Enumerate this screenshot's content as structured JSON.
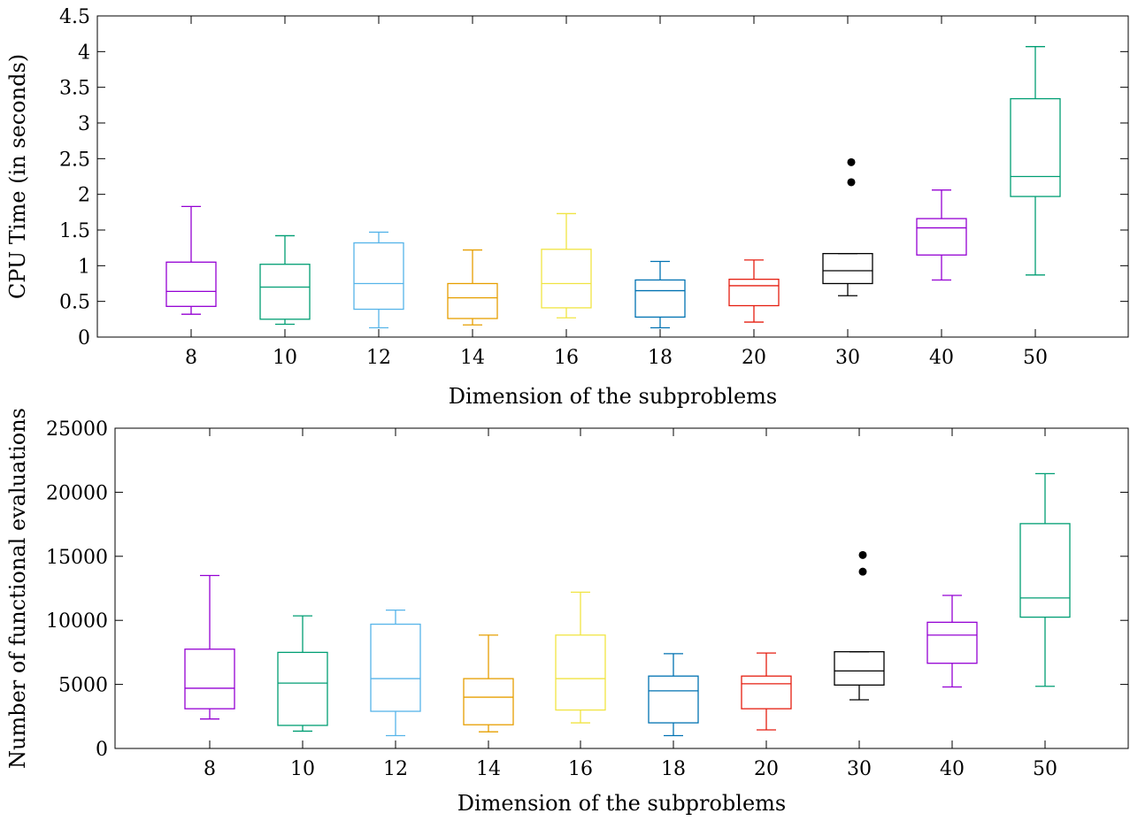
{
  "chart_data": [
    {
      "type": "box",
      "xlabel": "Dimension of the subproblems",
      "ylabel": "CPU Time (in seconds)",
      "ylim": [
        0,
        4.5
      ],
      "yticks": [
        "0",
        "0.5",
        "1",
        "1.5",
        "2",
        "2.5",
        "3",
        "3.5",
        "4",
        "4.5"
      ],
      "ytick_values": [
        0,
        0.5,
        1,
        1.5,
        2,
        2.5,
        3,
        3.5,
        4,
        4.5
      ],
      "grid": false,
      "categories": [
        "8",
        "10",
        "12",
        "14",
        "16",
        "18",
        "20",
        "30",
        "40",
        "50"
      ],
      "boxes": [
        {
          "min": 0.32,
          "q1": 0.43,
          "median": 0.64,
          "q3": 1.05,
          "max": 1.83,
          "outliers": [],
          "color": "#9400d3"
        },
        {
          "min": 0.18,
          "q1": 0.25,
          "median": 0.7,
          "q3": 1.02,
          "max": 1.42,
          "outliers": [],
          "color": "#009e73"
        },
        {
          "min": 0.13,
          "q1": 0.39,
          "median": 0.75,
          "q3": 1.32,
          "max": 1.47,
          "outliers": [],
          "color": "#56b4e9"
        },
        {
          "min": 0.17,
          "q1": 0.26,
          "median": 0.55,
          "q3": 0.75,
          "max": 1.22,
          "outliers": [],
          "color": "#e69f00"
        },
        {
          "min": 0.27,
          "q1": 0.41,
          "median": 0.75,
          "q3": 1.23,
          "max": 1.73,
          "outliers": [],
          "color": "#f0e442"
        },
        {
          "min": 0.13,
          "q1": 0.28,
          "median": 0.65,
          "q3": 0.8,
          "max": 1.06,
          "outliers": [],
          "color": "#0072b2"
        },
        {
          "min": 0.21,
          "q1": 0.44,
          "median": 0.72,
          "q3": 0.81,
          "max": 1.08,
          "outliers": [],
          "color": "#e51e10"
        },
        {
          "min": 0.58,
          "q1": 0.75,
          "median": 0.93,
          "q3": 1.17,
          "max": 1.17,
          "outliers": [
            2.17,
            2.45
          ],
          "color": "#000000"
        },
        {
          "min": 0.8,
          "q1": 1.15,
          "median": 1.53,
          "q3": 1.66,
          "max": 2.06,
          "outliers": [],
          "color": "#9400d3"
        },
        {
          "min": 0.87,
          "q1": 1.97,
          "median": 2.25,
          "q3": 3.34,
          "max": 4.07,
          "outliers": [],
          "color": "#009e73"
        }
      ]
    },
    {
      "type": "box",
      "xlabel": "Dimension of the subproblems",
      "ylabel": "Number of functional evaluations",
      "ylim": [
        0,
        25000
      ],
      "yticks": [
        "0",
        "5000",
        "10000",
        "15000",
        "20000",
        "25000"
      ],
      "ytick_values": [
        0,
        5000,
        10000,
        15000,
        20000,
        25000
      ],
      "grid": false,
      "categories": [
        "8",
        "10",
        "12",
        "14",
        "16",
        "18",
        "20",
        "30",
        "40",
        "50"
      ],
      "boxes": [
        {
          "min": 2300,
          "q1": 3100,
          "median": 4700,
          "q3": 7750,
          "max": 13500,
          "outliers": [],
          "color": "#9400d3"
        },
        {
          "min": 1350,
          "q1": 1800,
          "median": 5100,
          "q3": 7500,
          "max": 10350,
          "outliers": [],
          "color": "#009e73"
        },
        {
          "min": 1000,
          "q1": 2900,
          "median": 5450,
          "q3": 9700,
          "max": 10800,
          "outliers": [],
          "color": "#56b4e9"
        },
        {
          "min": 1300,
          "q1": 1850,
          "median": 4000,
          "q3": 5450,
          "max": 8850,
          "outliers": [],
          "color": "#e69f00"
        },
        {
          "min": 2000,
          "q1": 3000,
          "median": 5450,
          "q3": 8850,
          "max": 12200,
          "outliers": [],
          "color": "#f0e442"
        },
        {
          "min": 1000,
          "q1": 2000,
          "median": 4500,
          "q3": 5650,
          "max": 7400,
          "outliers": [],
          "color": "#0072b2"
        },
        {
          "min": 1450,
          "q1": 3100,
          "median": 5050,
          "q3": 5650,
          "max": 7450,
          "outliers": [],
          "color": "#e51e10"
        },
        {
          "min": 3800,
          "q1": 4950,
          "median": 6050,
          "q3": 7550,
          "max": 7550,
          "outliers": [
            13800,
            15100
          ],
          "color": "#000000"
        },
        {
          "min": 4800,
          "q1": 6650,
          "median": 8850,
          "q3": 9850,
          "max": 11950,
          "outliers": [],
          "color": "#9400d3"
        },
        {
          "min": 4850,
          "q1": 10250,
          "median": 11750,
          "q3": 17550,
          "max": 21450,
          "outliers": [],
          "color": "#009e73"
        }
      ]
    }
  ]
}
